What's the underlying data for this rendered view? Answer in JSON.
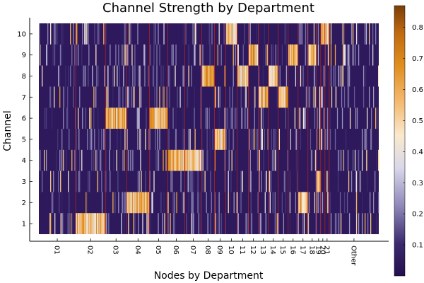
{
  "chart_data": {
    "type": "heatmap",
    "title": "Channel Strength by Department",
    "xlabel": "Nodes by Department",
    "ylabel": "Channel",
    "grid": true,
    "y_ticks": [
      "1",
      "2",
      "3",
      "4",
      "5",
      "6",
      "7",
      "8",
      "9",
      "10"
    ],
    "x_ticks": [
      "01",
      "02",
      "03",
      "04",
      "05",
      "06",
      "07",
      "08",
      "09",
      "10",
      "11",
      "12",
      "13",
      "14",
      "15",
      "16",
      "17",
      "18",
      "19",
      "20",
      "21",
      "Other"
    ],
    "n_nodes": 480,
    "department_starts": [
      0,
      52,
      94,
      124,
      156,
      182,
      206,
      230,
      248,
      264,
      280,
      296,
      310,
      324,
      338,
      352,
      366,
      380,
      392,
      398,
      404,
      410
    ],
    "department_hot_channel": [
      null,
      1,
      6,
      2,
      6,
      4,
      4,
      8,
      5,
      10,
      8,
      9,
      7,
      8,
      7,
      9,
      2,
      9,
      3,
      10,
      10,
      null
    ],
    "hot_level": 0.65,
    "background_level": 0.04,
    "colorbar": {
      "min": 0.0,
      "max": 0.87,
      "ticks": [
        0.1,
        0.2,
        0.3,
        0.4,
        0.5,
        0.6,
        0.7,
        0.8
      ],
      "colormap": "inferno-like (dark purple to orange)"
    },
    "separator_color": "#b22222"
  }
}
